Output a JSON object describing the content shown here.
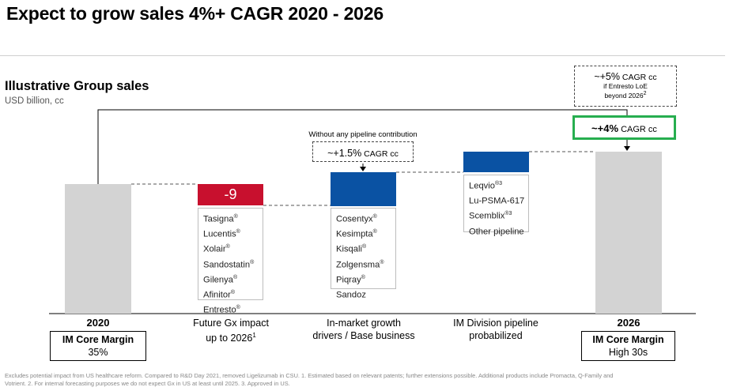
{
  "title": "Expect to grow sales 4%+ CAGR 2020 - 2026",
  "subtitle": "Illustrative Group sales",
  "unit": "USD billion, cc",
  "chart_data": {
    "type": "waterfall",
    "categories": [
      "2020",
      "Future Gx impact up to 2026",
      "In-market growth drivers / Base business",
      "IM Division pipeline probabilized",
      "2026"
    ],
    "value_labels": [
      "",
      "-9",
      "",
      "",
      ""
    ],
    "colors": {
      "total": "#d3d3d3",
      "negative": "#c8102e",
      "positive": "#0a52a3",
      "green": "#27ae4f"
    }
  },
  "annotations": {
    "pipeline_note": "Without any pipeline contribution",
    "cagr_no_pipeline": "~+1.5%",
    "cagr_no_pipeline_unit": " CAGR cc",
    "cagr_main": "~+4%",
    "cagr_main_unit": " CAGR cc",
    "cagr_entresto": "~+5%",
    "cagr_entresto_unit": " CAGR cc",
    "cagr_entresto_note1": "if Entresto LoE",
    "cagr_entresto_note2": "beyond 2026",
    "cagr_entresto_sup": "2"
  },
  "legend_gx": {
    "items": [
      "Tasigna",
      "Lucentis",
      "Xolair",
      "Sandostatin",
      "Gilenya",
      "Afinitor",
      "Entresto"
    ],
    "mark": "®"
  },
  "legend_growth": {
    "items": [
      {
        "name": "Cosentyx",
        "sup": "®"
      },
      {
        "name": "Kesimpta",
        "sup": "®"
      },
      {
        "name": "Kisqali",
        "sup": "®"
      },
      {
        "name": "Zolgensma",
        "sup": "®"
      },
      {
        "name": "Piqray",
        "sup": "®"
      },
      {
        "name": "Sandoz",
        "sup": ""
      }
    ]
  },
  "legend_pipeline": {
    "items": [
      {
        "name": "Leqvio",
        "sup": "®3"
      },
      {
        "name": "Lu-PSMA-617",
        "sup": ""
      },
      {
        "name": "Scemblix",
        "sup": "®3"
      },
      {
        "name": "Other pipeline",
        "sup": ""
      }
    ]
  },
  "xlabels": {
    "y2020": "2020",
    "gx_line1": "Future Gx impact",
    "gx_line2": "up to 2026",
    "gx_sup": "1",
    "growth_line1": "In-market growth",
    "growth_line2": "drivers / Base business",
    "pipeline_line1": "IM Division pipeline",
    "pipeline_line2": "probabilized",
    "y2026": "2026"
  },
  "margins": {
    "label": "IM Core Margin",
    "v2020": "35%",
    "v2026": "High 30s"
  },
  "footnote": {
    "line1": "Excludes potential impact from US healthcare reform. Compared to R&D Day 2021, removed Ligelizumab in CSU.    1. Estimated based on relevant patents; further extensions possible. Additional products include Promacta, Q-Family and",
    "line2": "Votrient.    2. For internal forecasting purposes we do not expect Gx in US at least until 2025.    3. Approved in US."
  }
}
